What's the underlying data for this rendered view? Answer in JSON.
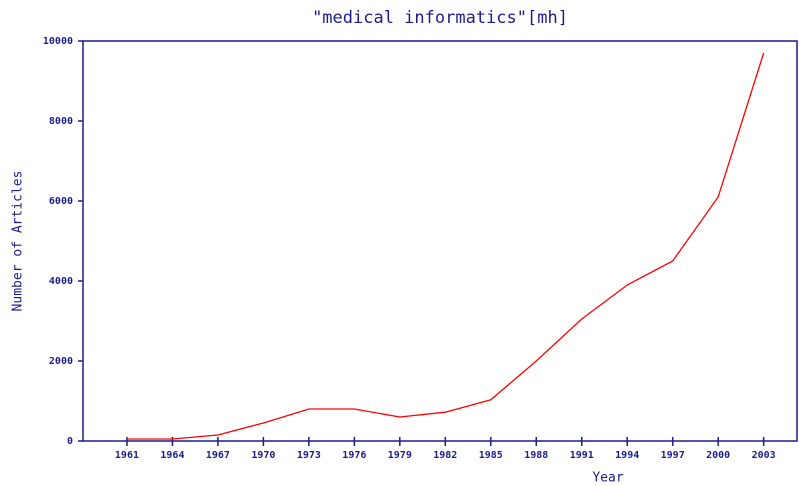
{
  "chart_data": {
    "type": "line",
    "title": "\"medical informatics\"[mh]",
    "x_label": "Year",
    "y_label": "Number of Articles",
    "x": [
      1961,
      1964,
      1967,
      1970,
      1973,
      1976,
      1979,
      1982,
      1985,
      1988,
      1991,
      1994,
      1997,
      2000,
      2003
    ],
    "series": [
      {
        "name": "Number of Articles",
        "color": "#ff0000",
        "values": [
          50,
          50,
          150,
          450,
          800,
          800,
          600,
          720,
          1030,
          2000,
          3050,
          3900,
          4500,
          6100,
          9700
        ]
      }
    ],
    "xlim": [
      1958.1,
      2005.2
    ],
    "xticks": [
      1961,
      1964,
      1967,
      1970,
      1973,
      1976,
      1979,
      1982,
      1985,
      1988,
      1991,
      1994,
      1997,
      2000,
      2003
    ],
    "ylim": [
      0,
      10000
    ],
    "yticks": [
      0,
      2000,
      4000,
      6000,
      8000,
      10000
    ],
    "axis_color": "#1c1c8c"
  }
}
